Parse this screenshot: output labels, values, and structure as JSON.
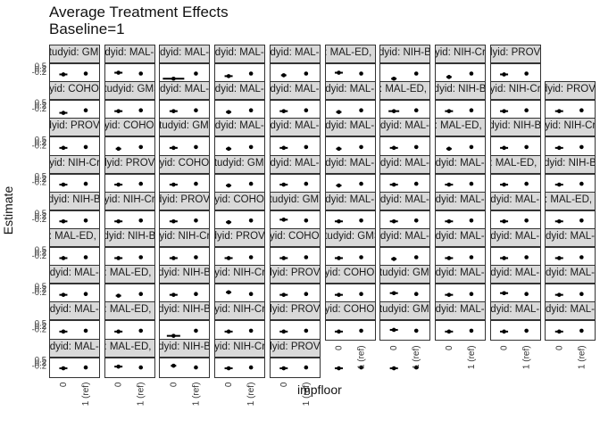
{
  "title": "Average Treatment Effects",
  "subtitle": "Baseline=1",
  "chart_data": {
    "type": "scatter",
    "title": "Average Treatment Effects",
    "subtitle": "Baseline=1",
    "xlabel": "impfloor",
    "ylabel": "Estimate",
    "categories": [
      "0",
      "1 (ref)"
    ],
    "ytick_labels": [
      "-0.2",
      "0.2",
      "0.5"
    ],
    "strip_labels": [
      [
        "studyid: GMS",
        "studyid: MAL-ED",
        "studyid: MAL-ED",
        "studyid: MAL-ED",
        "studyid: MAL-ED",
        "studyid: MAL-ED, country",
        "studyid: NIH-Birth",
        "studyid: NIH-Crypto",
        "studyid: PROVIDE",
        null
      ],
      [
        "studyid: COHORTS",
        "studyid: GMS",
        "studyid: MAL-ED",
        "studyid: MAL-ED",
        "studyid: MAL-ED",
        "studyid: MAL-ED",
        "studyid: MAL-ED, country",
        "studyid: NIH-Birth",
        "studyid: NIH-Crypto",
        "studyid: PROVIDE"
      ],
      [
        "studyid: PROVIDE",
        "studyid: COHORTS",
        "studyid: GMS",
        "studyid: MAL-ED",
        "studyid: MAL-ED",
        "studyid: MAL-ED",
        "studyid: MAL-ED",
        "studyid: MAL-ED, country",
        "studyid: NIH-Birth",
        "studyid: NIH-Crypto"
      ],
      [
        "studyid: NIH-Crypto",
        "studyid: PROVIDE",
        "studyid: COHORTS",
        "studyid: GMS",
        "studyid: MAL-ED",
        "studyid: MAL-ED",
        "studyid: MAL-ED",
        "studyid: MAL-ED",
        "studyid: MAL-ED, country",
        "studyid: NIH-Birth"
      ],
      [
        "studyid: NIH-Birth",
        "studyid: NIH-Crypto",
        "studyid: PROVIDE",
        "studyid: COHORTS",
        "studyid: GMS",
        "studyid: MAL-ED",
        "studyid: MAL-ED",
        "studyid: MAL-ED",
        "studyid: MAL-ED",
        "studyid: MAL-ED, country"
      ],
      [
        "studyid: MAL-ED, country",
        "studyid: NIH-Birth",
        "studyid: NIH-Crypto",
        "studyid: PROVIDE",
        "studyid: COHORTS",
        "studyid: GMS",
        "studyid: MAL-ED",
        "studyid: MAL-ED",
        "studyid: MAL-ED",
        "studyid: MAL-ED"
      ],
      [
        "studyid: MAL-ED",
        "studyid: MAL-ED, country",
        "studyid: NIH-Birth",
        "studyid: NIH-Crypto",
        "studyid: PROVIDE",
        "studyid: COHORTS",
        "studyid: GMS",
        "studyid: MAL-ED",
        "studyid: MAL-ED",
        "studyid: MAL-ED"
      ],
      [
        "studyid: MAL-ED",
        "studyid: MAL-ED, country",
        "studyid: NIH-Birth",
        "studyid: NIH-Crypto",
        "studyid: PROVIDE",
        "studyid: COHORTS",
        "studyid: GMS",
        "studyid: MAL-ED",
        "studyid: MAL-ED",
        "studyid: MAL-ED"
      ],
      [
        "studyid: MAL-ED",
        "studyid: MAL-ED, country",
        "studyid: NIH-Birth",
        "studyid: NIH-Crypto",
        "studyid: PROVIDE",
        null,
        null,
        null,
        null,
        null
      ]
    ],
    "panels": [
      {
        "row": 0,
        "col": 0,
        "estimate": -0.05,
        "ci": [
          -0.2,
          0.1
        ]
      },
      {
        "row": 0,
        "col": 1,
        "estimate": 0.05,
        "ci": [
          -0.1,
          0.2
        ]
      },
      {
        "row": 0,
        "col": 2,
        "estimate": -0.3,
        "ci": [
          -0.5,
          0.3
        ]
      },
      {
        "row": 0,
        "col": 3,
        "estimate": -0.15,
        "ci": [
          -0.3,
          0.0
        ]
      },
      {
        "row": 0,
        "col": 4,
        "estimate": -0.1,
        "ci": [
          -0.2,
          0.0
        ]
      },
      {
        "row": 0,
        "col": 5,
        "estimate": 0.05,
        "ci": [
          -0.1,
          0.2
        ]
      },
      {
        "row": 0,
        "col": 6,
        "estimate": -0.3,
        "ci": [
          -0.4,
          -0.2
        ]
      },
      {
        "row": 0,
        "col": 7,
        "estimate": -0.2,
        "ci": [
          -0.3,
          -0.1
        ]
      },
      {
        "row": 0,
        "col": 8,
        "estimate": -0.05,
        "ci": [
          -0.2,
          0.1
        ]
      },
      {
        "row": 1,
        "col": 0,
        "estimate": -0.15,
        "ci": [
          -0.3,
          0.0
        ]
      },
      {
        "row": 1,
        "col": 1,
        "estimate": -0.05,
        "ci": [
          -0.2,
          0.1
        ]
      },
      {
        "row": 1,
        "col": 2,
        "estimate": -0.05,
        "ci": [
          -0.2,
          0.1
        ]
      },
      {
        "row": 1,
        "col": 3,
        "estimate": -0.1,
        "ci": [
          -0.2,
          0.0
        ]
      },
      {
        "row": 1,
        "col": 4,
        "estimate": -0.05,
        "ci": [
          -0.2,
          0.1
        ]
      },
      {
        "row": 1,
        "col": 5,
        "estimate": -0.1,
        "ci": [
          -0.2,
          0.0
        ]
      },
      {
        "row": 1,
        "col": 6,
        "estimate": -0.05,
        "ci": [
          -0.2,
          0.2
        ]
      },
      {
        "row": 1,
        "col": 7,
        "estimate": -0.05,
        "ci": [
          -0.2,
          0.1
        ]
      },
      {
        "row": 1,
        "col": 8,
        "estimate": -0.05,
        "ci": [
          -0.2,
          0.1
        ]
      },
      {
        "row": 1,
        "col": 9,
        "estimate": -0.05,
        "ci": [
          -0.2,
          0.1
        ]
      },
      {
        "row": 2,
        "col": 0,
        "estimate": -0.05,
        "ci": [
          -0.2,
          0.1
        ]
      },
      {
        "row": 2,
        "col": 1,
        "estimate": -0.1,
        "ci": [
          -0.2,
          0.0
        ]
      },
      {
        "row": 2,
        "col": 2,
        "estimate": -0.05,
        "ci": [
          -0.2,
          0.1
        ]
      },
      {
        "row": 2,
        "col": 3,
        "estimate": -0.1,
        "ci": [
          -0.2,
          0.0
        ]
      },
      {
        "row": 2,
        "col": 4,
        "estimate": -0.05,
        "ci": [
          -0.2,
          0.1
        ]
      },
      {
        "row": 2,
        "col": 5,
        "estimate": -0.1,
        "ci": [
          -0.2,
          0.0
        ]
      },
      {
        "row": 2,
        "col": 6,
        "estimate": -0.05,
        "ci": [
          -0.2,
          0.1
        ]
      },
      {
        "row": 2,
        "col": 7,
        "estimate": -0.1,
        "ci": [
          -0.2,
          0.0
        ]
      },
      {
        "row": 2,
        "col": 8,
        "estimate": -0.05,
        "ci": [
          -0.2,
          0.1
        ]
      },
      {
        "row": 2,
        "col": 9,
        "estimate": -0.05,
        "ci": [
          -0.2,
          0.1
        ]
      },
      {
        "row": 3,
        "col": 0,
        "estimate": -0.05,
        "ci": [
          -0.2,
          0.1
        ]
      },
      {
        "row": 3,
        "col": 1,
        "estimate": -0.05,
        "ci": [
          -0.2,
          0.1
        ]
      },
      {
        "row": 3,
        "col": 2,
        "estimate": -0.05,
        "ci": [
          -0.2,
          0.1
        ]
      },
      {
        "row": 3,
        "col": 3,
        "estimate": -0.1,
        "ci": [
          -0.2,
          0.0
        ]
      },
      {
        "row": 3,
        "col": 4,
        "estimate": -0.05,
        "ci": [
          -0.2,
          0.1
        ]
      },
      {
        "row": 3,
        "col": 5,
        "estimate": -0.1,
        "ci": [
          -0.2,
          0.0
        ]
      },
      {
        "row": 3,
        "col": 6,
        "estimate": -0.05,
        "ci": [
          -0.2,
          0.1
        ]
      },
      {
        "row": 3,
        "col": 7,
        "estimate": -0.05,
        "ci": [
          -0.2,
          0.1
        ]
      },
      {
        "row": 3,
        "col": 8,
        "estimate": -0.05,
        "ci": [
          -0.2,
          0.1
        ]
      },
      {
        "row": 3,
        "col": 9,
        "estimate": -0.05,
        "ci": [
          -0.2,
          0.1
        ]
      },
      {
        "row": 4,
        "col": 0,
        "estimate": -0.05,
        "ci": [
          -0.2,
          0.1
        ]
      },
      {
        "row": 4,
        "col": 1,
        "estimate": -0.05,
        "ci": [
          -0.2,
          0.1
        ]
      },
      {
        "row": 4,
        "col": 2,
        "estimate": -0.05,
        "ci": [
          -0.2,
          0.1
        ]
      },
      {
        "row": 4,
        "col": 3,
        "estimate": -0.1,
        "ci": [
          -0.2,
          0.0
        ]
      },
      {
        "row": 4,
        "col": 4,
        "estimate": 0.05,
        "ci": [
          -0.1,
          0.2
        ]
      },
      {
        "row": 4,
        "col": 5,
        "estimate": -0.05,
        "ci": [
          -0.2,
          0.1
        ]
      },
      {
        "row": 4,
        "col": 6,
        "estimate": -0.05,
        "ci": [
          -0.2,
          0.1
        ]
      },
      {
        "row": 4,
        "col": 7,
        "estimate": -0.05,
        "ci": [
          -0.2,
          0.1
        ]
      },
      {
        "row": 4,
        "col": 8,
        "estimate": -0.05,
        "ci": [
          -0.2,
          0.1
        ]
      },
      {
        "row": 4,
        "col": 9,
        "estimate": -0.05,
        "ci": [
          -0.2,
          0.1
        ]
      },
      {
        "row": 5,
        "col": 0,
        "estimate": -0.05,
        "ci": [
          -0.2,
          0.1
        ]
      },
      {
        "row": 5,
        "col": 1,
        "estimate": -0.05,
        "ci": [
          -0.2,
          0.1
        ]
      },
      {
        "row": 5,
        "col": 2,
        "estimate": -0.05,
        "ci": [
          -0.2,
          0.1
        ]
      },
      {
        "row": 5,
        "col": 3,
        "estimate": -0.05,
        "ci": [
          -0.2,
          0.1
        ]
      },
      {
        "row": 5,
        "col": 4,
        "estimate": -0.05,
        "ci": [
          -0.2,
          0.1
        ]
      },
      {
        "row": 5,
        "col": 5,
        "estimate": -0.05,
        "ci": [
          -0.2,
          0.1
        ]
      },
      {
        "row": 5,
        "col": 6,
        "estimate": -0.1,
        "ci": [
          -0.2,
          0.0
        ]
      },
      {
        "row": 5,
        "col": 7,
        "estimate": -0.05,
        "ci": [
          -0.2,
          0.1
        ]
      },
      {
        "row": 5,
        "col": 8,
        "estimate": -0.05,
        "ci": [
          -0.2,
          0.1
        ]
      },
      {
        "row": 5,
        "col": 9,
        "estimate": -0.05,
        "ci": [
          -0.2,
          0.1
        ]
      },
      {
        "row": 6,
        "col": 0,
        "estimate": -0.05,
        "ci": [
          -0.2,
          0.1
        ]
      },
      {
        "row": 6,
        "col": 1,
        "estimate": -0.1,
        "ci": [
          -0.2,
          0.0
        ]
      },
      {
        "row": 6,
        "col": 2,
        "estimate": -0.05,
        "ci": [
          -0.2,
          0.1
        ]
      },
      {
        "row": 6,
        "col": 3,
        "estimate": 0.1,
        "ci": [
          0.0,
          0.2
        ]
      },
      {
        "row": 6,
        "col": 4,
        "estimate": -0.05,
        "ci": [
          -0.2,
          0.1
        ]
      },
      {
        "row": 6,
        "col": 5,
        "estimate": -0.05,
        "ci": [
          -0.2,
          0.1
        ]
      },
      {
        "row": 6,
        "col": 6,
        "estimate": 0.05,
        "ci": [
          -0.1,
          0.2
        ]
      },
      {
        "row": 6,
        "col": 7,
        "estimate": -0.05,
        "ci": [
          -0.2,
          0.1
        ]
      },
      {
        "row": 6,
        "col": 8,
        "estimate": 0.05,
        "ci": [
          -0.1,
          0.2
        ]
      },
      {
        "row": 6,
        "col": 9,
        "estimate": -0.05,
        "ci": [
          -0.2,
          0.1
        ]
      },
      {
        "row": 7,
        "col": 0,
        "estimate": -0.05,
        "ci": [
          -0.2,
          0.1
        ]
      },
      {
        "row": 7,
        "col": 1,
        "estimate": -0.05,
        "ci": [
          -0.2,
          0.1
        ]
      },
      {
        "row": 7,
        "col": 2,
        "estimate": -0.3,
        "ci": [
          -0.4,
          0.1
        ]
      },
      {
        "row": 7,
        "col": 3,
        "estimate": -0.05,
        "ci": [
          -0.2,
          0.1
        ]
      },
      {
        "row": 7,
        "col": 4,
        "estimate": -0.05,
        "ci": [
          -0.2,
          0.1
        ]
      },
      {
        "row": 7,
        "col": 5,
        "estimate": -0.05,
        "ci": [
          -0.2,
          0.1
        ]
      },
      {
        "row": 7,
        "col": 6,
        "estimate": 0.05,
        "ci": [
          -0.1,
          0.2
        ]
      },
      {
        "row": 7,
        "col": 7,
        "estimate": -0.05,
        "ci": [
          -0.2,
          0.1
        ]
      },
      {
        "row": 7,
        "col": 8,
        "estimate": -0.05,
        "ci": [
          -0.2,
          0.1
        ]
      },
      {
        "row": 7,
        "col": 9,
        "estimate": -0.05,
        "ci": [
          -0.2,
          0.1
        ]
      },
      {
        "row": 8,
        "col": 0,
        "estimate": -0.05,
        "ci": [
          -0.2,
          0.1
        ]
      },
      {
        "row": 8,
        "col": 1,
        "estimate": 0.05,
        "ci": [
          -0.1,
          0.2
        ]
      },
      {
        "row": 8,
        "col": 2,
        "estimate": 0.1,
        "ci": [
          0.0,
          0.2
        ]
      },
      {
        "row": 8,
        "col": 3,
        "estimate": -0.05,
        "ci": [
          -0.2,
          0.1
        ]
      },
      {
        "row": 8,
        "col": 4,
        "estimate": -0.05,
        "ci": [
          -0.2,
          0.1
        ]
      },
      {
        "row": 8,
        "col": 5,
        "estimate": -0.05,
        "ci": [
          -0.2,
          0.1
        ]
      },
      {
        "row": 8,
        "col": 6,
        "estimate": -0.05,
        "ci": [
          -0.2,
          0.1
        ]
      }
    ],
    "reference_value": 0,
    "ylim": [
      -0.6,
      0.6
    ],
    "grid": false,
    "legend": "none"
  },
  "colors": {
    "strip_fill": "#d9d9d9",
    "panel_border": "#333333",
    "point": "#000000"
  }
}
